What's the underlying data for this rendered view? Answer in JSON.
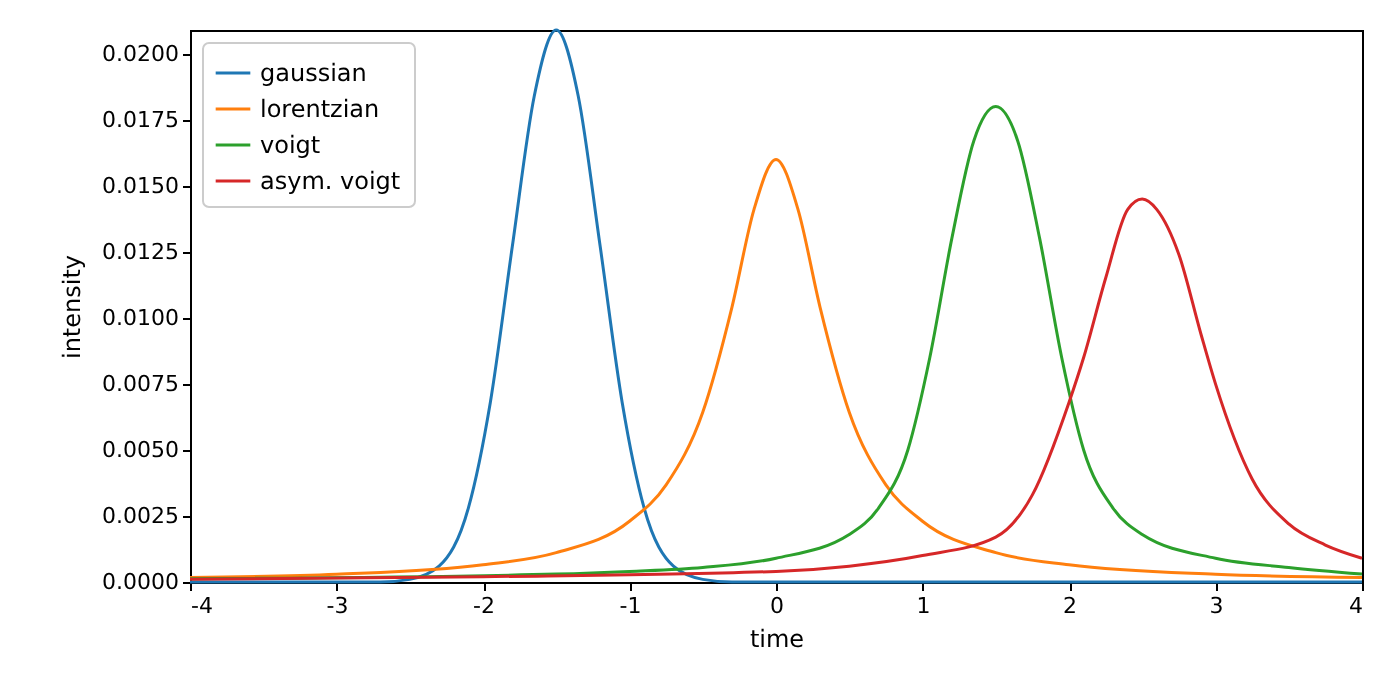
{
  "chart_data": {
    "type": "line",
    "xlabel": "time",
    "ylabel": "intensity",
    "xlim": [
      -4,
      4
    ],
    "xticks": [
      -4,
      -3,
      -2,
      -1,
      0,
      1,
      2,
      3,
      4
    ],
    "ylim": [
      0,
      0.0209
    ],
    "yticks": [
      {
        "value": 0,
        "label": "0.0000"
      },
      {
        "value": 0.0025,
        "label": "0.0025"
      },
      {
        "value": 0.005,
        "label": "0.0050"
      },
      {
        "value": 0.0075,
        "label": "0.0075"
      },
      {
        "value": 0.01,
        "label": "0.0100"
      },
      {
        "value": 0.0125,
        "label": "0.0125"
      },
      {
        "value": 0.015,
        "label": "0.0150"
      },
      {
        "value": 0.0175,
        "label": "0.0175"
      },
      {
        "value": 0.02,
        "label": "0.0200"
      }
    ],
    "legend": "top left",
    "series": [
      {
        "name": "gaussian",
        "color": "#1f77b4",
        "x": [
          -4,
          -3,
          -2.7,
          -2.5,
          -2.3,
          -2.1,
          -1.95,
          -1.8,
          -1.65,
          -1.5,
          -1.35,
          -1.2,
          -1.05,
          -0.9,
          -0.7,
          -0.5,
          -0.3,
          0,
          4
        ],
        "values": [
          0,
          0,
          0,
          0.0001,
          0.0006,
          0.0028,
          0.0068,
          0.0127,
          0.0184,
          0.0209,
          0.0184,
          0.0127,
          0.0068,
          0.0028,
          0.0006,
          0.0001,
          0,
          0,
          0
        ]
      },
      {
        "name": "lorentzian",
        "color": "#ff7f0e",
        "x": [
          -4,
          -3,
          -2,
          -1.5,
          -1,
          -0.75,
          -0.5,
          -0.3,
          -0.15,
          0,
          0.15,
          0.3,
          0.5,
          0.75,
          1,
          1.5,
          2,
          3,
          4
        ],
        "values": [
          0.00017,
          0.00029,
          0.00065,
          0.00111,
          0.0023,
          0.00368,
          0.00643,
          0.01042,
          0.01411,
          0.016,
          0.01411,
          0.01042,
          0.00643,
          0.00368,
          0.0023,
          0.00111,
          0.00065,
          0.00029,
          0.00017
        ]
      },
      {
        "name": "voigt",
        "color": "#2ca02c",
        "x": [
          -4,
          -1.5,
          -1,
          -0.5,
          0,
          0.5,
          0.7,
          0.9,
          1.05,
          1.2,
          1.35,
          1.5,
          1.65,
          1.8,
          1.95,
          2.1,
          2.3,
          2.5,
          3,
          3.5,
          4
        ],
        "values": [
          0.00012,
          0.0003,
          0.0004,
          0.00055,
          0.0009,
          0.0018,
          0.0028,
          0.005,
          0.0085,
          0.013,
          0.0167,
          0.018,
          0.0167,
          0.013,
          0.0085,
          0.005,
          0.0028,
          0.0018,
          0.0009,
          0.00055,
          0.0003
        ]
      },
      {
        "name": "asym. voigt",
        "color": "#d62728",
        "x": [
          -4,
          -2,
          0,
          0.5,
          1,
          1.5,
          1.75,
          2,
          2.1,
          2.25,
          2.4,
          2.5,
          2.6,
          2.75,
          2.9,
          3,
          3.25,
          3.5,
          3.75,
          4
        ],
        "values": [
          0.0001,
          0.0002,
          0.0004,
          0.0006,
          0.001,
          0.0017,
          0.0033,
          0.0068,
          0.0085,
          0.0115,
          0.0141,
          0.0145,
          0.0141,
          0.0124,
          0.0094,
          0.0075,
          0.0039,
          0.0022,
          0.0014,
          0.0009
        ]
      }
    ]
  }
}
